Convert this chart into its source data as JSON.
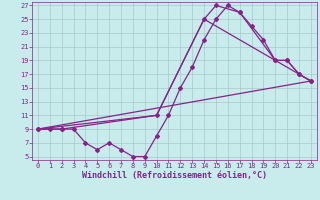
{
  "xlabel": "Windchill (Refroidissement éolien,°C)",
  "bg_color": "#c8ecec",
  "grid_color": "#a0c0c0",
  "line_color": "#882288",
  "xlim_min": -0.5,
  "xlim_max": 23.5,
  "ylim_min": 4.5,
  "ylim_max": 27.5,
  "xticks": [
    0,
    1,
    2,
    3,
    4,
    5,
    6,
    7,
    8,
    9,
    10,
    11,
    12,
    13,
    14,
    15,
    16,
    17,
    18,
    19,
    20,
    21,
    22,
    23
  ],
  "yticks": [
    5,
    7,
    9,
    11,
    13,
    15,
    17,
    19,
    21,
    23,
    25,
    27
  ],
  "lines": [
    {
      "x": [
        0,
        1,
        2,
        3,
        4,
        5,
        6,
        7,
        8,
        9,
        10,
        11,
        12,
        13,
        14,
        15,
        16,
        17,
        18,
        19,
        20,
        21,
        22,
        23
      ],
      "y": [
        9,
        9,
        9,
        9,
        7,
        6,
        7,
        6,
        5,
        5,
        8,
        11,
        15,
        18,
        22,
        25,
        27,
        26,
        24,
        22,
        19,
        19,
        17,
        16
      ],
      "marker": "D",
      "ms": 2.0
    },
    {
      "x": [
        0,
        2,
        10,
        14,
        15,
        17,
        20,
        21,
        22,
        23
      ],
      "y": [
        9,
        9,
        11,
        25,
        27,
        26,
        19,
        19,
        17,
        16
      ],
      "marker": "D",
      "ms": 2.0
    },
    {
      "x": [
        0,
        10,
        14,
        20,
        23
      ],
      "y": [
        9,
        11,
        25,
        19,
        16
      ],
      "marker": null,
      "ms": 0
    },
    {
      "x": [
        0,
        23
      ],
      "y": [
        9,
        16
      ],
      "marker": null,
      "ms": 0
    }
  ],
  "line_width": 0.9,
  "font_size": 6.0,
  "tick_font_size": 5.0
}
